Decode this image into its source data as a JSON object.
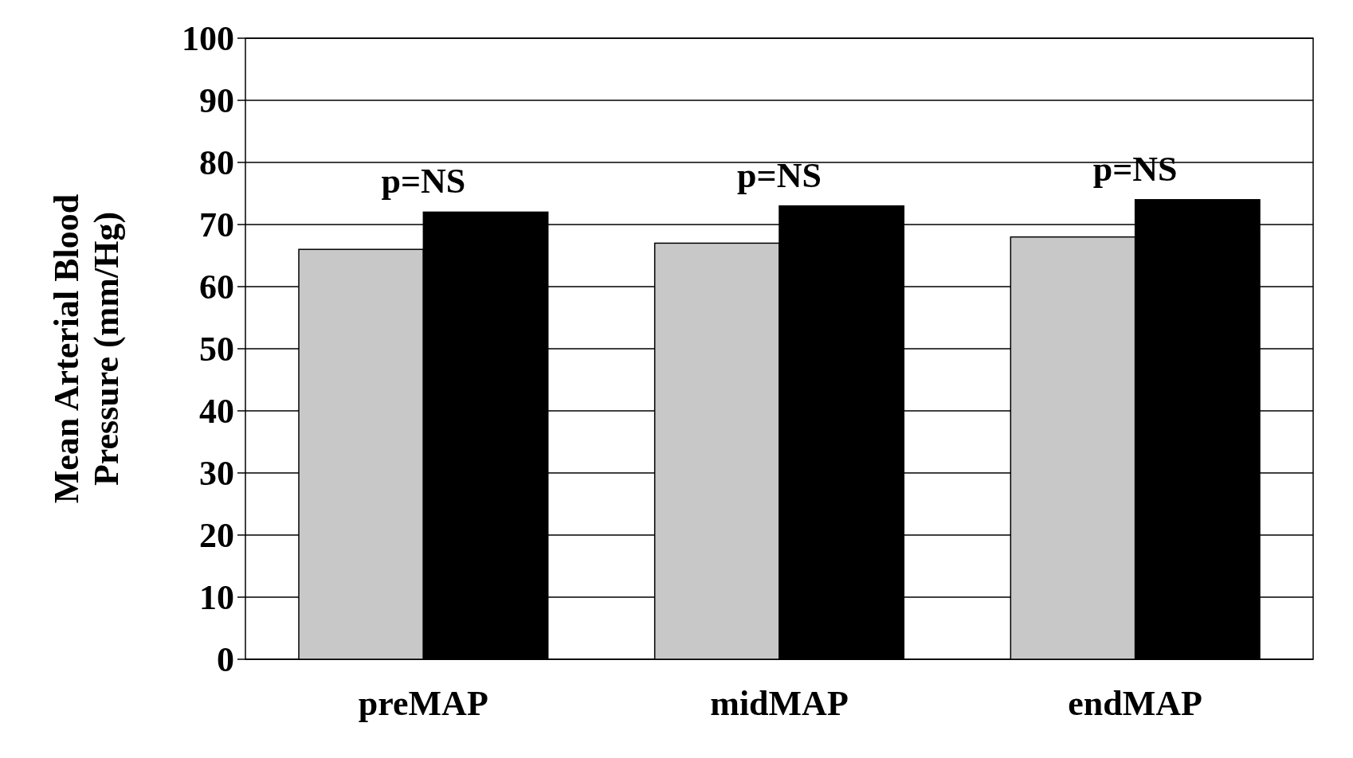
{
  "chart_data": {
    "type": "bar",
    "ylabel": "Mean Arterial Blood Pressure (mm/Hg)",
    "categories": [
      "preMAP",
      "midMAP",
      "endMAP"
    ],
    "series": [
      {
        "color": "#c8c8c8",
        "values": [
          66,
          67,
          68
        ]
      },
      {
        "color": "#000000",
        "values": [
          72,
          73,
          74
        ]
      }
    ],
    "ylim": [
      0,
      100
    ],
    "yticks": [
      0,
      10,
      20,
      30,
      40,
      50,
      60,
      70,
      80,
      90,
      100
    ],
    "grid": "y",
    "annotations": [
      "p=NS",
      "p=NS",
      "p=NS"
    ]
  }
}
